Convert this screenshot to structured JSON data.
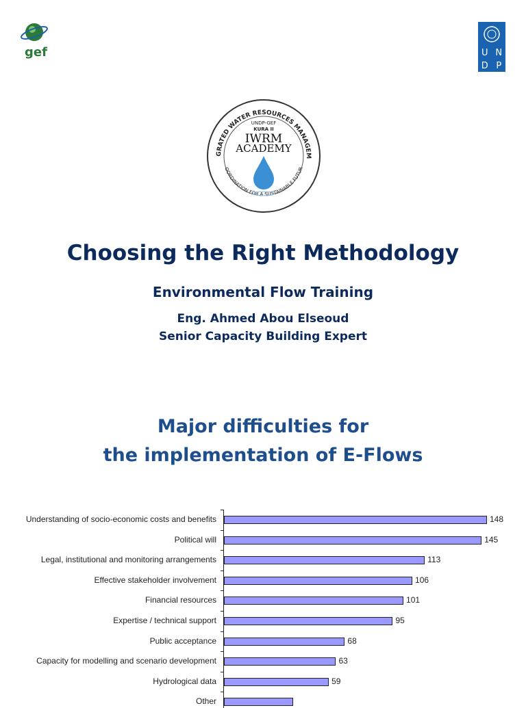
{
  "logos": {
    "gef": "gef",
    "undp": [
      "U",
      "N",
      "D",
      "P"
    ],
    "seal": {
      "ring_top": "INTEGRATED WATER RESOURCES MANAGEMENT",
      "ring_bottom": "COORDINATION FOR A SUSTAINABLE FUTURE",
      "line1": "UNDP-GEF",
      "line2": "KURA II",
      "line3": "IWRM",
      "line4": "ACADEMY"
    }
  },
  "title": "Choosing the Right Methodology",
  "subtitle": "Environmental Flow Training",
  "author": "Eng. Ahmed Abou Elseoud",
  "role": "Senior Capacity Building Expert",
  "section_heading": [
    "Major difficulties for",
    "the implementation of E-Flows"
  ],
  "colors": {
    "bar": "#9999ff",
    "title": "#0d2a5c",
    "heading": "#1f4e8c"
  },
  "chart_data": {
    "type": "bar",
    "orientation": "horizontal",
    "categories": [
      "Understanding of socio-economic costs and benefits",
      "Political will",
      "Legal, institutional and monitoring arrangements",
      "Effective stakeholder involvement",
      "Financial resources",
      "Expertise / technical support",
      "Public acceptance",
      "Capacity for modelling and scenario development",
      "Hydrological data",
      "Other"
    ],
    "values": [
      148,
      145,
      113,
      106,
      101,
      95,
      68,
      63,
      59,
      39
    ],
    "value_labels": [
      "148",
      "145",
      "113",
      "106",
      "101",
      "95",
      "68",
      "63",
      "59",
      ""
    ],
    "xlim": [
      0,
      148
    ]
  }
}
